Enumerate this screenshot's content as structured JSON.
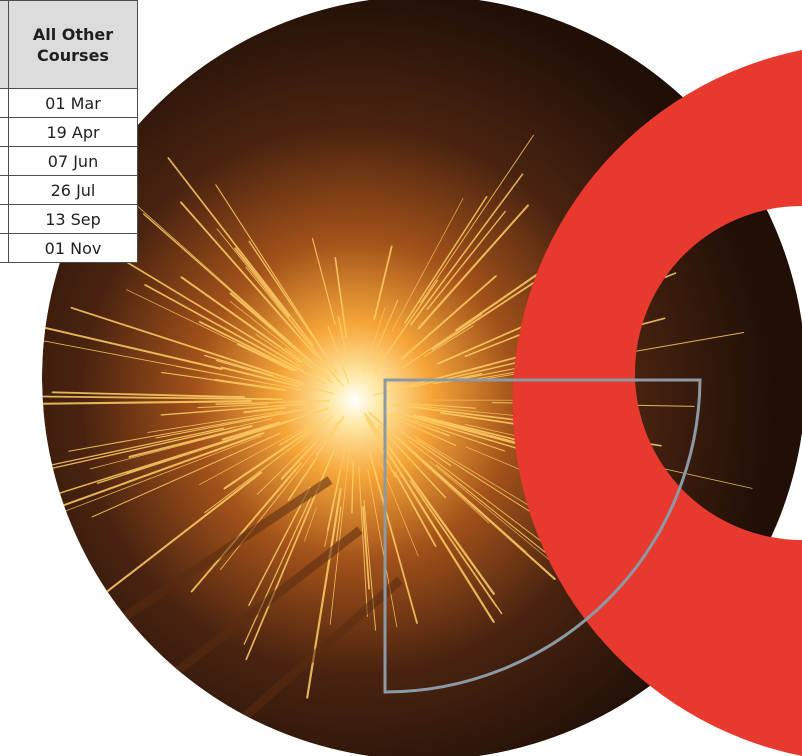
{
  "schedule": {
    "header": "All Other Courses",
    "dates": [
      "01 Mar",
      "19 Apr",
      "07 Jun",
      "26 Jul",
      "13 Sep",
      "01 Nov"
    ]
  },
  "colors": {
    "accent_red": "#e8392f",
    "outline_grey": "#8c9aa6",
    "table_header_bg": "#dcdcdc"
  },
  "images": {
    "photo": "welding-sparks-photo"
  }
}
